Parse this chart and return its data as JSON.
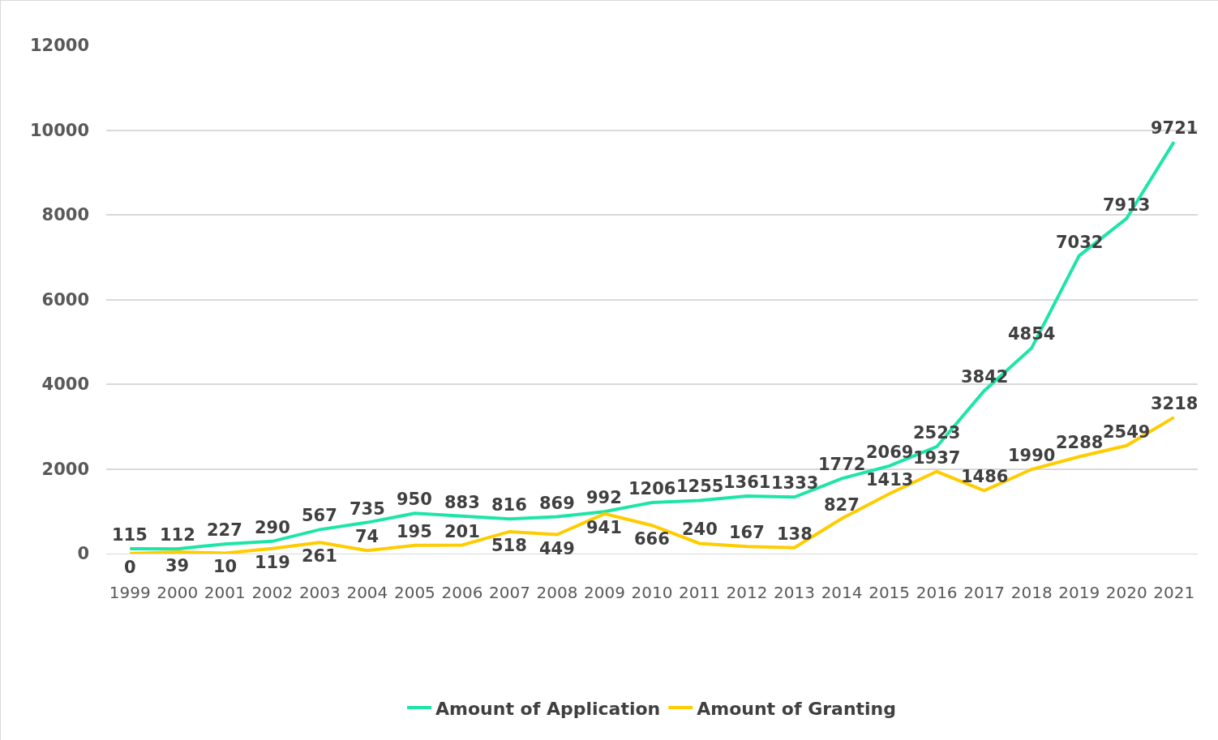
{
  "chart_data": {
    "type": "line",
    "categories": [
      "1999",
      "2000",
      "2001",
      "2002",
      "2003",
      "2004",
      "2005",
      "2006",
      "2007",
      "2008",
      "2009",
      "2010",
      "2011",
      "2012",
      "2013",
      "2014",
      "2015",
      "2016",
      "2017",
      "2018",
      "2019",
      "2020",
      "2021"
    ],
    "series": [
      {
        "name": "Amount of Application",
        "color": "#1de5a8",
        "values": [
          115,
          112,
          227,
          290,
          567,
          735,
          950,
          883,
          816,
          869,
          992,
          1206,
          1255,
          1361,
          1333,
          1772,
          2069,
          2523,
          3842,
          4854,
          7032,
          7913,
          9721
        ]
      },
      {
        "name": "Amount of Granting",
        "color": "#ffcc00",
        "values": [
          0,
          39,
          10,
          119,
          261,
          74,
          195,
          201,
          518,
          449,
          941,
          666,
          240,
          167,
          138,
          827,
          1413,
          1937,
          1486,
          1990,
          2288,
          2549,
          3218
        ]
      }
    ],
    "ylim": [
      0,
      12000
    ],
    "yticks": [
      0,
      2000,
      4000,
      6000,
      8000,
      10000,
      12000
    ],
    "grid": "y",
    "legend": "bottom",
    "data_labels": true,
    "marker": "none",
    "line_style": "solid"
  }
}
